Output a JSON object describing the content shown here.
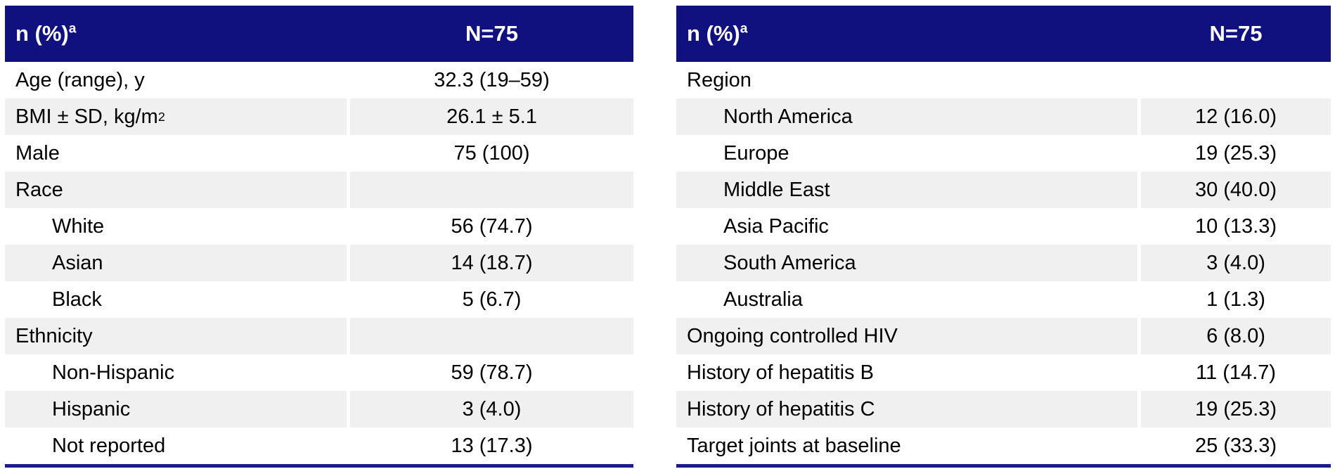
{
  "colors": {
    "header_navy": "#10107E",
    "row_alt_gray": "#F0F0F0",
    "bottom_rule_navy": "#1B1B8C",
    "header_text": "#FFFFFF",
    "body_text": "#000000"
  },
  "tables": [
    {
      "name": "demographics",
      "header": {
        "label": "n (%)",
        "label_sup": "a",
        "value": "N=75"
      },
      "rows": [
        {
          "label": "Age (range), y",
          "value": "32.3 (19–59)",
          "indent": false
        },
        {
          "label": "BMI ± SD, kg/m",
          "label_sup": "2",
          "value": "26.1 ± 5.1",
          "indent": false
        },
        {
          "label": "Male",
          "value": "75 (100)",
          "indent": false
        },
        {
          "label": "Race",
          "value": "",
          "indent": false
        },
        {
          "label": "White",
          "value": "56 (74.7)",
          "indent": true
        },
        {
          "label": "Asian",
          "value": "14 (18.7)",
          "indent": true
        },
        {
          "label": "Black",
          "value": "5 (6.7)",
          "indent": true
        },
        {
          "label": "Ethnicity",
          "value": "",
          "indent": false
        },
        {
          "label": "Non-Hispanic",
          "value": "59 (78.7)",
          "indent": true
        },
        {
          "label": "Hispanic",
          "value": "3 (4.0)",
          "indent": true
        },
        {
          "label": "Not reported",
          "value": "13 (17.3)",
          "indent": true
        }
      ]
    },
    {
      "name": "region-and-history",
      "header": {
        "label": "n (%)",
        "label_sup": "a",
        "value": "N=75"
      },
      "rows": [
        {
          "label": "Region",
          "value": "",
          "indent": false
        },
        {
          "label": "North America",
          "value": "12 (16.0)",
          "indent": true
        },
        {
          "label": "Europe",
          "value": "19 (25.3)",
          "indent": true
        },
        {
          "label": "Middle East",
          "value": "30 (40.0)",
          "indent": true
        },
        {
          "label": "Asia Pacific",
          "value": "10 (13.3)",
          "indent": true
        },
        {
          "label": "South America",
          "value": "3 (4.0)",
          "indent": true
        },
        {
          "label": "Australia",
          "value": "1 (1.3)",
          "indent": true
        },
        {
          "label": "Ongoing controlled HIV",
          "value": "6 (8.0)",
          "indent": false
        },
        {
          "label": "History of hepatitis B",
          "value": "11 (14.7)",
          "indent": false
        },
        {
          "label": "History of hepatitis C",
          "value": "19 (25.3)",
          "indent": false
        },
        {
          "label": "Target joints at baseline",
          "value": "25 (33.3)",
          "indent": false
        }
      ]
    }
  ]
}
